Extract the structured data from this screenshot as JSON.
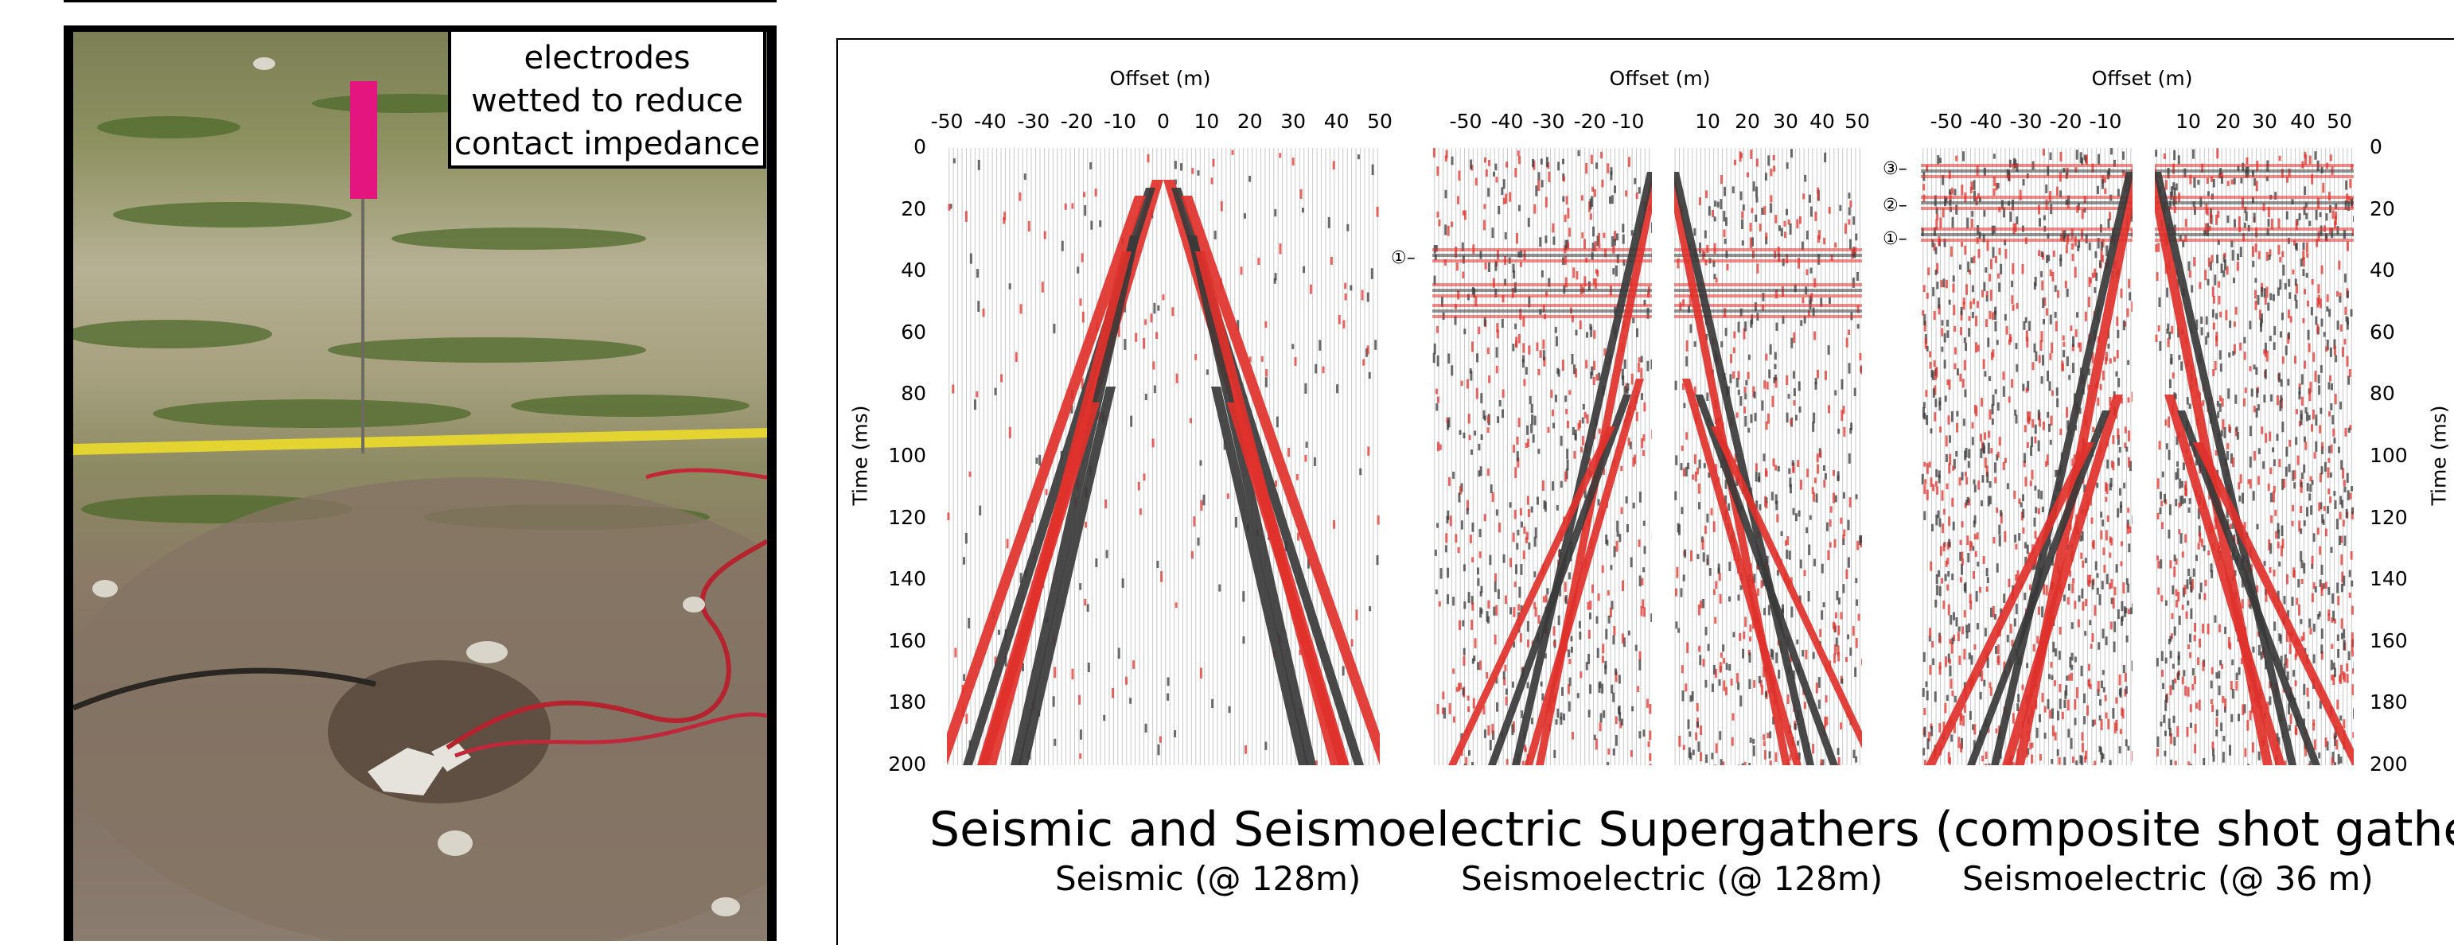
{
  "photo": {
    "caption_lines": [
      "electrodes",
      "wetted to reduce",
      "contact impedance"
    ]
  },
  "figure": {
    "main_title": "Seismic and Seismoelectric Supergathers (composite shot gathers)",
    "x_axis_label": "Offset (m)",
    "y_axis_label": "Time (ms)",
    "y_ticks": [
      "0",
      "20",
      "40",
      "60",
      "80",
      "100",
      "120",
      "140",
      "160",
      "180",
      "200"
    ],
    "panels": [
      {
        "subtitle": "Seismic (@ 128m)",
        "x_ticks": [
          "-50",
          "-40",
          "-30",
          "-20",
          "-10",
          "0",
          "10",
          "20",
          "30",
          "40",
          "50"
        ]
      },
      {
        "subtitle": "Seismoelectric (@ 128m)",
        "x_ticks": [
          "-50",
          "-40",
          "-30",
          "-20",
          "-10",
          "10",
          "20",
          "30",
          "40",
          "50"
        ],
        "markers": [
          "①"
        ]
      },
      {
        "subtitle": "Seismoelectric (@ 36 m)",
        "x_ticks": [
          "-50",
          "-40",
          "-30",
          "-20",
          "-10",
          "10",
          "20",
          "30",
          "40",
          "50"
        ],
        "markers": [
          "③",
          "②",
          "①"
        ]
      }
    ]
  },
  "colors": {
    "positive_wiggle": "#e0312b",
    "negative_wiggle": "#3a3a3a",
    "frame": "#000000"
  }
}
